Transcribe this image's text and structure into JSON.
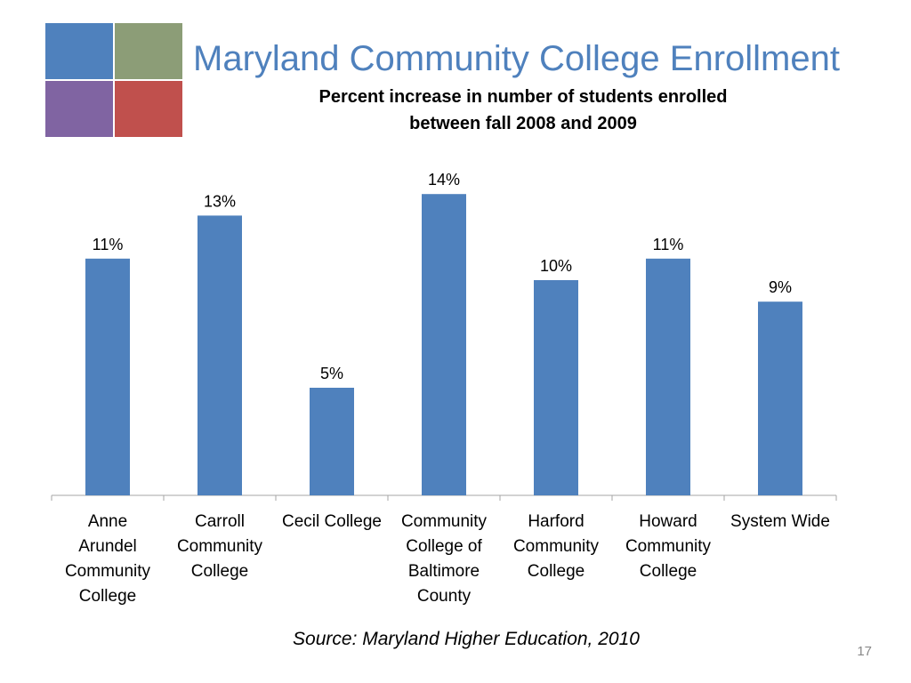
{
  "slide": {
    "title": "Maryland Community College Enrollment",
    "subtitle_line1": "Percent increase in number of students enrolled",
    "subtitle_line2": "between fall 2008 and 2009",
    "source": "Source: Maryland Higher Education, 2010",
    "page_number": "17"
  },
  "colors": {
    "bar": "#4f81bd",
    "title": "#4f81bd",
    "logo": [
      "#4f81bd",
      "#8c9d77",
      "#8064a2",
      "#c0504d"
    ]
  },
  "chart_data": {
    "type": "bar",
    "title": "",
    "xlabel": "",
    "ylabel": "",
    "ylim": [
      0,
      16
    ],
    "grid": false,
    "legend": "none",
    "categories": [
      [
        "Anne",
        "Arundel",
        "Community",
        "College"
      ],
      [
        "Carroll",
        "Community",
        "College"
      ],
      [
        "Cecil College"
      ],
      [
        "Community",
        "College of",
        "Baltimore",
        "County"
      ],
      [
        "Harford",
        "Community",
        "College"
      ],
      [
        "Howard",
        "Community",
        "College"
      ],
      [
        "System Wide"
      ]
    ],
    "values": [
      11,
      13,
      5,
      14,
      10,
      11,
      9
    ],
    "data_labels": [
      "11%",
      "13%",
      "5%",
      "14%",
      "10%",
      "11%",
      "9%"
    ]
  }
}
